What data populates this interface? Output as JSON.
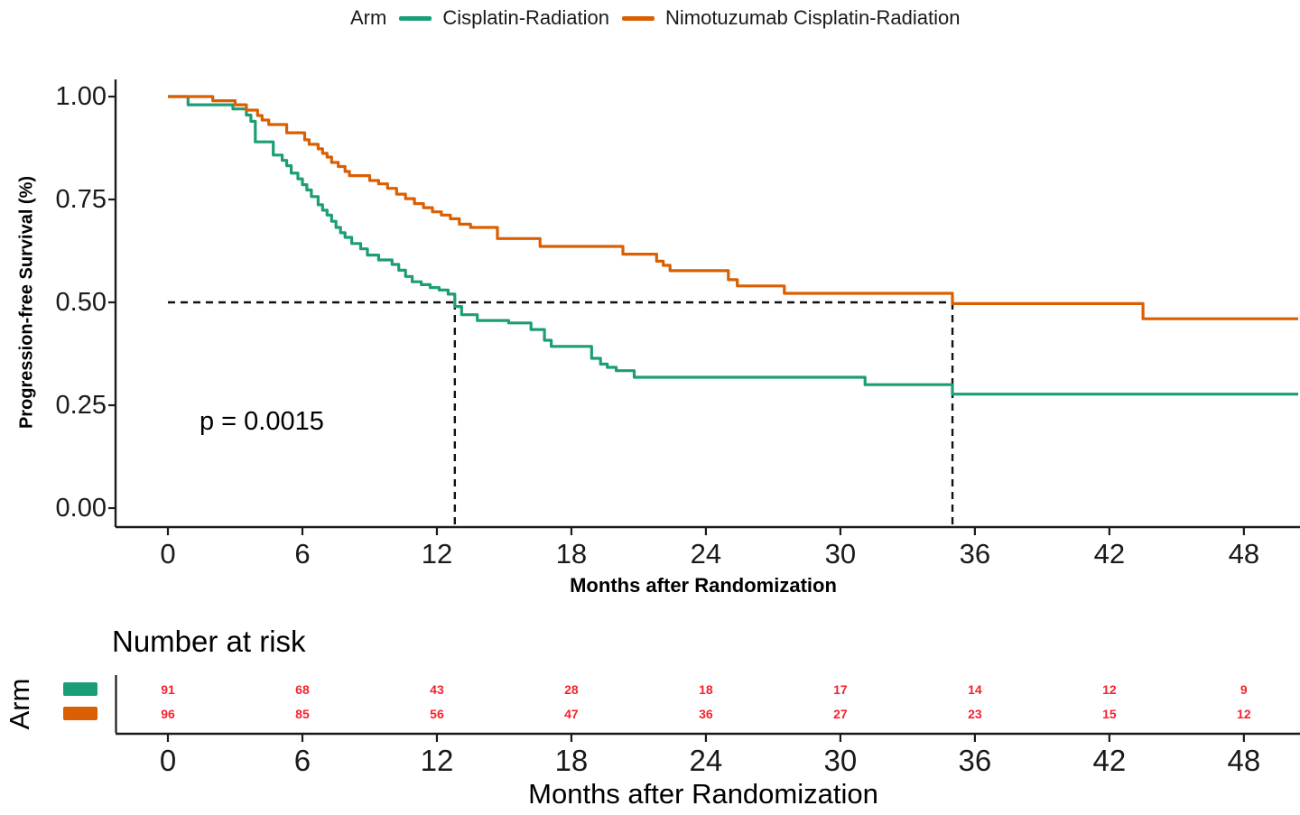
{
  "legend": {
    "title": "Arm",
    "items": [
      {
        "label": "Cisplatin-Radiation",
        "color": "#1b9e77"
      },
      {
        "label": "Nimotuzumab Cisplatin-Radiation",
        "color": "#d95f02"
      }
    ]
  },
  "chart_data": {
    "type": "line",
    "subtype": "kaplan-meier-step-curves",
    "title": "",
    "xlabel": "Months after Randomization",
    "ylabel": "Progression-free Survival (%)",
    "xlim": [
      0,
      50.4
    ],
    "ylim": [
      0,
      1.0
    ],
    "x_ticks": [
      0,
      6,
      12,
      18,
      24,
      30,
      36,
      42,
      48
    ],
    "y_ticks": [
      1.0,
      0.75,
      0.5,
      0.25,
      0.0
    ],
    "y_tick_labels": [
      "1.00",
      "0.75",
      "0.50",
      "0.25",
      "0.00"
    ],
    "grid": false,
    "legend_position": "top",
    "pvalue_label": "p = 0.0015",
    "median_annotation": {
      "survival_level": 0.5,
      "median_times": [
        12.8,
        35.0
      ],
      "line_style": "dashed"
    },
    "series": [
      {
        "name": "Cisplatin-Radiation",
        "color": "#1b9e77",
        "points": [
          [
            0,
            1.0
          ],
          [
            0.9,
            0.98
          ],
          [
            2.9,
            0.97
          ],
          [
            3.5,
            0.955
          ],
          [
            3.7,
            0.94
          ],
          [
            3.9,
            0.89
          ],
          [
            4.7,
            0.858
          ],
          [
            5.1,
            0.845
          ],
          [
            5.3,
            0.832
          ],
          [
            5.5,
            0.814
          ],
          [
            5.8,
            0.8
          ],
          [
            6.0,
            0.786
          ],
          [
            6.2,
            0.773
          ],
          [
            6.4,
            0.757
          ],
          [
            6.7,
            0.737
          ],
          [
            6.9,
            0.724
          ],
          [
            7.1,
            0.712
          ],
          [
            7.3,
            0.697
          ],
          [
            7.5,
            0.682
          ],
          [
            7.7,
            0.669
          ],
          [
            7.9,
            0.658
          ],
          [
            8.2,
            0.643
          ],
          [
            8.6,
            0.63
          ],
          [
            8.9,
            0.615
          ],
          [
            9.4,
            0.603
          ],
          [
            10.0,
            0.592
          ],
          [
            10.3,
            0.578
          ],
          [
            10.6,
            0.563
          ],
          [
            10.9,
            0.55
          ],
          [
            11.3,
            0.543
          ],
          [
            11.7,
            0.536
          ],
          [
            12.1,
            0.53
          ],
          [
            12.5,
            0.52
          ],
          [
            12.8,
            0.49
          ],
          [
            13.1,
            0.47
          ],
          [
            13.8,
            0.456
          ],
          [
            15.2,
            0.45
          ],
          [
            16.2,
            0.434
          ],
          [
            16.8,
            0.408
          ],
          [
            17.1,
            0.393
          ],
          [
            18.9,
            0.364
          ],
          [
            19.3,
            0.35
          ],
          [
            19.6,
            0.342
          ],
          [
            20.0,
            0.334
          ],
          [
            20.8,
            0.318
          ],
          [
            31.1,
            0.3
          ],
          [
            35.0,
            0.277
          ],
          [
            50.4,
            0.277
          ]
        ]
      },
      {
        "name": "Nimotuzumab Cisplatin-Radiation",
        "color": "#d95f02",
        "points": [
          [
            0,
            1.0
          ],
          [
            2.0,
            0.99
          ],
          [
            3.0,
            0.98
          ],
          [
            3.5,
            0.967
          ],
          [
            4.0,
            0.954
          ],
          [
            4.2,
            0.943
          ],
          [
            4.5,
            0.932
          ],
          [
            5.3,
            0.912
          ],
          [
            6.1,
            0.895
          ],
          [
            6.3,
            0.884
          ],
          [
            6.7,
            0.873
          ],
          [
            6.9,
            0.862
          ],
          [
            7.1,
            0.853
          ],
          [
            7.3,
            0.84
          ],
          [
            7.6,
            0.83
          ],
          [
            7.9,
            0.818
          ],
          [
            8.1,
            0.808
          ],
          [
            9.0,
            0.796
          ],
          [
            9.4,
            0.788
          ],
          [
            9.8,
            0.777
          ],
          [
            10.2,
            0.763
          ],
          [
            10.6,
            0.752
          ],
          [
            11.0,
            0.74
          ],
          [
            11.4,
            0.73
          ],
          [
            11.8,
            0.72
          ],
          [
            12.2,
            0.712
          ],
          [
            12.6,
            0.703
          ],
          [
            13.0,
            0.69
          ],
          [
            13.5,
            0.682
          ],
          [
            14.7,
            0.655
          ],
          [
            16.6,
            0.636
          ],
          [
            20.3,
            0.617
          ],
          [
            21.8,
            0.6
          ],
          [
            22.1,
            0.59
          ],
          [
            22.4,
            0.577
          ],
          [
            25.0,
            0.555
          ],
          [
            25.4,
            0.54
          ],
          [
            27.5,
            0.522
          ],
          [
            35.0,
            0.497
          ],
          [
            43.5,
            0.46
          ],
          [
            50.4,
            0.46
          ]
        ]
      }
    ]
  },
  "risk_table": {
    "title": "Number at risk",
    "axis_label": "Arm",
    "xlabel": "Months after Randomization",
    "times": [
      0,
      6,
      12,
      18,
      24,
      30,
      36,
      42,
      48
    ],
    "number_color": "#f5222d",
    "rows": [
      {
        "arm": "Cisplatin-Radiation",
        "color": "#1b9e77",
        "counts": [
          91,
          68,
          43,
          28,
          18,
          17,
          14,
          12,
          9
        ]
      },
      {
        "arm": "Nimotuzumab Cisplatin-Radiation",
        "color": "#d95f02",
        "counts": [
          96,
          85,
          56,
          47,
          36,
          27,
          23,
          15,
          12
        ]
      }
    ]
  }
}
